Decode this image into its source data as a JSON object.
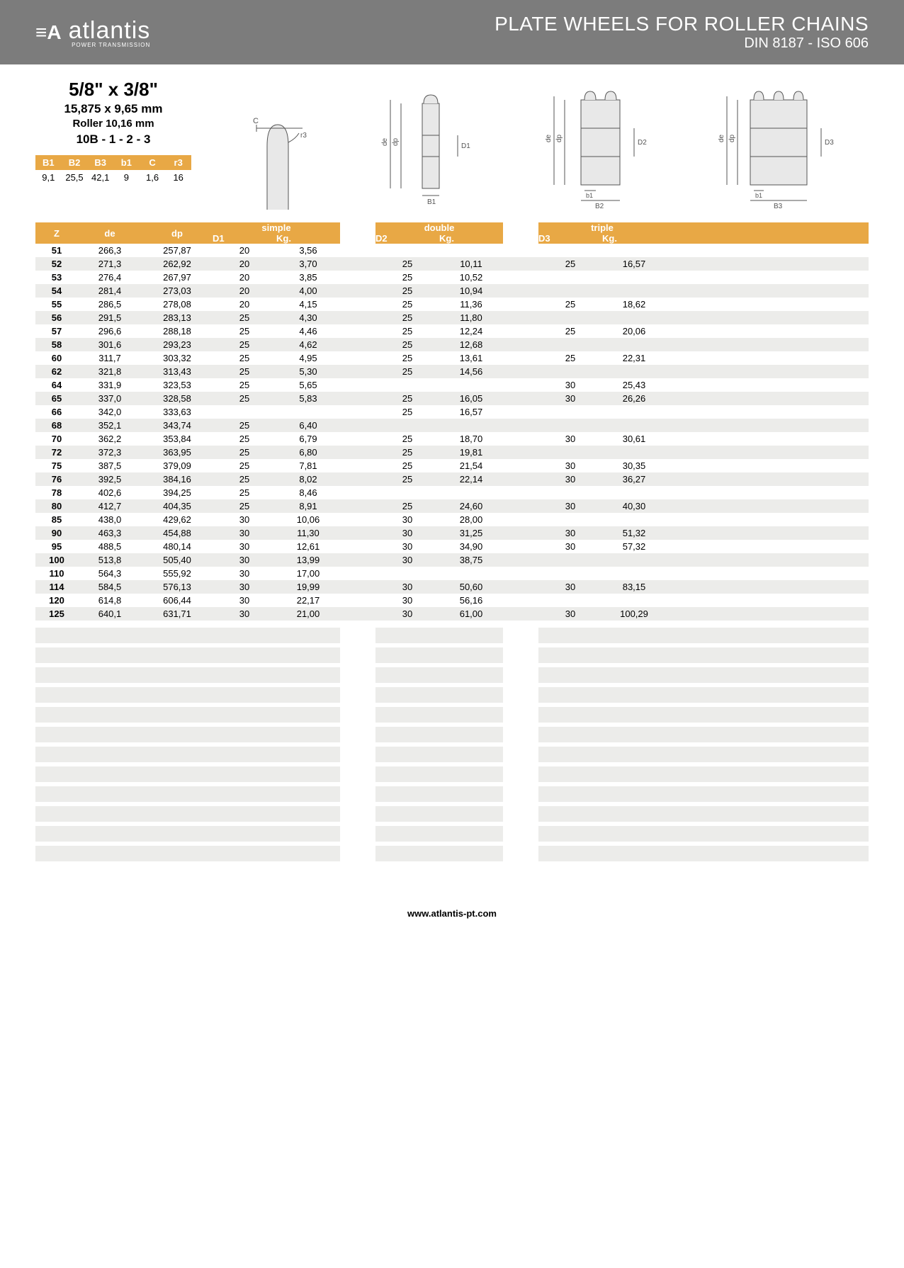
{
  "header": {
    "brand": "atlantis",
    "brand_sub": "POWER TRANSMISSION",
    "title1": "PLATE WHEELS FOR ROLLER CHAINS",
    "title2": "DIN 8187 - ISO 606"
  },
  "spec": {
    "size": "5/8\" x 3/8\"",
    "dim": "15,875 x 9,65 mm",
    "roller": "Roller 10,16 mm",
    "code": "10B - 1 - 2 - 3"
  },
  "small_table": {
    "headers": [
      "B1",
      "B2",
      "B3",
      "b1",
      "C",
      "r3"
    ],
    "values": [
      "9,1",
      "25,5",
      "42,1",
      "9",
      "1,6",
      "16"
    ]
  },
  "main_headers": {
    "z": "Z",
    "de": "de",
    "dp": "dp",
    "simple": "simple",
    "double": "double",
    "triple": "triple",
    "d1": "D1",
    "d2": "D2",
    "d3": "D3",
    "kg": "Kg."
  },
  "rows": [
    {
      "z": "51",
      "de": "266,3",
      "dp": "257,87",
      "d1": "20",
      "kg1": "3,56",
      "d2": "",
      "kg2": "",
      "d3": "",
      "kg3": ""
    },
    {
      "z": "52",
      "de": "271,3",
      "dp": "262,92",
      "d1": "20",
      "kg1": "3,70",
      "d2": "25",
      "kg2": "10,11",
      "d3": "25",
      "kg3": "16,57"
    },
    {
      "z": "53",
      "de": "276,4",
      "dp": "267,97",
      "d1": "20",
      "kg1": "3,85",
      "d2": "25",
      "kg2": "10,52",
      "d3": "",
      "kg3": ""
    },
    {
      "z": "54",
      "de": "281,4",
      "dp": "273,03",
      "d1": "20",
      "kg1": "4,00",
      "d2": "25",
      "kg2": "10,94",
      "d3": "",
      "kg3": ""
    },
    {
      "z": "55",
      "de": "286,5",
      "dp": "278,08",
      "d1": "20",
      "kg1": "4,15",
      "d2": "25",
      "kg2": "11,36",
      "d3": "25",
      "kg3": "18,62"
    },
    {
      "z": "56",
      "de": "291,5",
      "dp": "283,13",
      "d1": "25",
      "kg1": "4,30",
      "d2": "25",
      "kg2": "11,80",
      "d3": "",
      "kg3": ""
    },
    {
      "z": "57",
      "de": "296,6",
      "dp": "288,18",
      "d1": "25",
      "kg1": "4,46",
      "d2": "25",
      "kg2": "12,24",
      "d3": "25",
      "kg3": "20,06"
    },
    {
      "z": "58",
      "de": "301,6",
      "dp": "293,23",
      "d1": "25",
      "kg1": "4,62",
      "d2": "25",
      "kg2": "12,68",
      "d3": "",
      "kg3": ""
    },
    {
      "z": "60",
      "de": "311,7",
      "dp": "303,32",
      "d1": "25",
      "kg1": "4,95",
      "d2": "25",
      "kg2": "13,61",
      "d3": "25",
      "kg3": "22,31"
    },
    {
      "z": "62",
      "de": "321,8",
      "dp": "313,43",
      "d1": "25",
      "kg1": "5,30",
      "d2": "25",
      "kg2": "14,56",
      "d3": "",
      "kg3": ""
    },
    {
      "z": "64",
      "de": "331,9",
      "dp": "323,53",
      "d1": "25",
      "kg1": "5,65",
      "d2": "",
      "kg2": "",
      "d3": "30",
      "kg3": "25,43"
    },
    {
      "z": "65",
      "de": "337,0",
      "dp": "328,58",
      "d1": "25",
      "kg1": "5,83",
      "d2": "25",
      "kg2": "16,05",
      "d3": "30",
      "kg3": "26,26"
    },
    {
      "z": "66",
      "de": "342,0",
      "dp": "333,63",
      "d1": "",
      "kg1": "",
      "d2": "25",
      "kg2": "16,57",
      "d3": "",
      "kg3": ""
    },
    {
      "z": "68",
      "de": "352,1",
      "dp": "343,74",
      "d1": "25",
      "kg1": "6,40",
      "d2": "",
      "kg2": "",
      "d3": "",
      "kg3": ""
    },
    {
      "z": "70",
      "de": "362,2",
      "dp": "353,84",
      "d1": "25",
      "kg1": "6,79",
      "d2": "25",
      "kg2": "18,70",
      "d3": "30",
      "kg3": "30,61"
    },
    {
      "z": "72",
      "de": "372,3",
      "dp": "363,95",
      "d1": "25",
      "kg1": "6,80",
      "d2": "25",
      "kg2": "19,81",
      "d3": "",
      "kg3": ""
    },
    {
      "z": "75",
      "de": "387,5",
      "dp": "379,09",
      "d1": "25",
      "kg1": "7,81",
      "d2": "25",
      "kg2": "21,54",
      "d3": "30",
      "kg3": "30,35"
    },
    {
      "z": "76",
      "de": "392,5",
      "dp": "384,16",
      "d1": "25",
      "kg1": "8,02",
      "d2": "25",
      "kg2": "22,14",
      "d3": "30",
      "kg3": "36,27"
    },
    {
      "z": "78",
      "de": "402,6",
      "dp": "394,25",
      "d1": "25",
      "kg1": "8,46",
      "d2": "",
      "kg2": "",
      "d3": "",
      "kg3": ""
    },
    {
      "z": "80",
      "de": "412,7",
      "dp": "404,35",
      "d1": "25",
      "kg1": "8,91",
      "d2": "25",
      "kg2": "24,60",
      "d3": "30",
      "kg3": "40,30"
    },
    {
      "z": "85",
      "de": "438,0",
      "dp": "429,62",
      "d1": "30",
      "kg1": "10,06",
      "d2": "30",
      "kg2": "28,00",
      "d3": "",
      "kg3": ""
    },
    {
      "z": "90",
      "de": "463,3",
      "dp": "454,88",
      "d1": "30",
      "kg1": "11,30",
      "d2": "30",
      "kg2": "31,25",
      "d3": "30",
      "kg3": "51,32"
    },
    {
      "z": "95",
      "de": "488,5",
      "dp": "480,14",
      "d1": "30",
      "kg1": "12,61",
      "d2": "30",
      "kg2": "34,90",
      "d3": "30",
      "kg3": "57,32"
    },
    {
      "z": "100",
      "de": "513,8",
      "dp": "505,40",
      "d1": "30",
      "kg1": "13,99",
      "d2": "30",
      "kg2": "38,75",
      "d3": "",
      "kg3": ""
    },
    {
      "z": "110",
      "de": "564,3",
      "dp": "555,92",
      "d1": "30",
      "kg1": "17,00",
      "d2": "",
      "kg2": "",
      "d3": "",
      "kg3": ""
    },
    {
      "z": "114",
      "de": "584,5",
      "dp": "576,13",
      "d1": "30",
      "kg1": "19,99",
      "d2": "30",
      "kg2": "50,60",
      "d3": "30",
      "kg3": "83,15"
    },
    {
      "z": "120",
      "de": "614,8",
      "dp": "606,44",
      "d1": "30",
      "kg1": "22,17",
      "d2": "30",
      "kg2": "56,16",
      "d3": "",
      "kg3": ""
    },
    {
      "z": "125",
      "de": "640,1",
      "dp": "631,71",
      "d1": "30",
      "kg1": "21,00",
      "d2": "30",
      "kg2": "61,00",
      "d3": "30",
      "kg3": "100,29"
    }
  ],
  "empty_rows": 12,
  "footer": "www.atlantis-pt.com",
  "colors": {
    "header_bg": "#7c7c7c",
    "orange": "#e8a845",
    "row_alt": "#ececea"
  },
  "diagram_labels": {
    "c": "C",
    "r3": "r3",
    "de": "de",
    "dp": "dp",
    "d1": "D1",
    "d2": "D2",
    "d3": "D3",
    "b1": "b1",
    "bb1": "B1",
    "bb2": "B2",
    "bb3": "B3"
  }
}
